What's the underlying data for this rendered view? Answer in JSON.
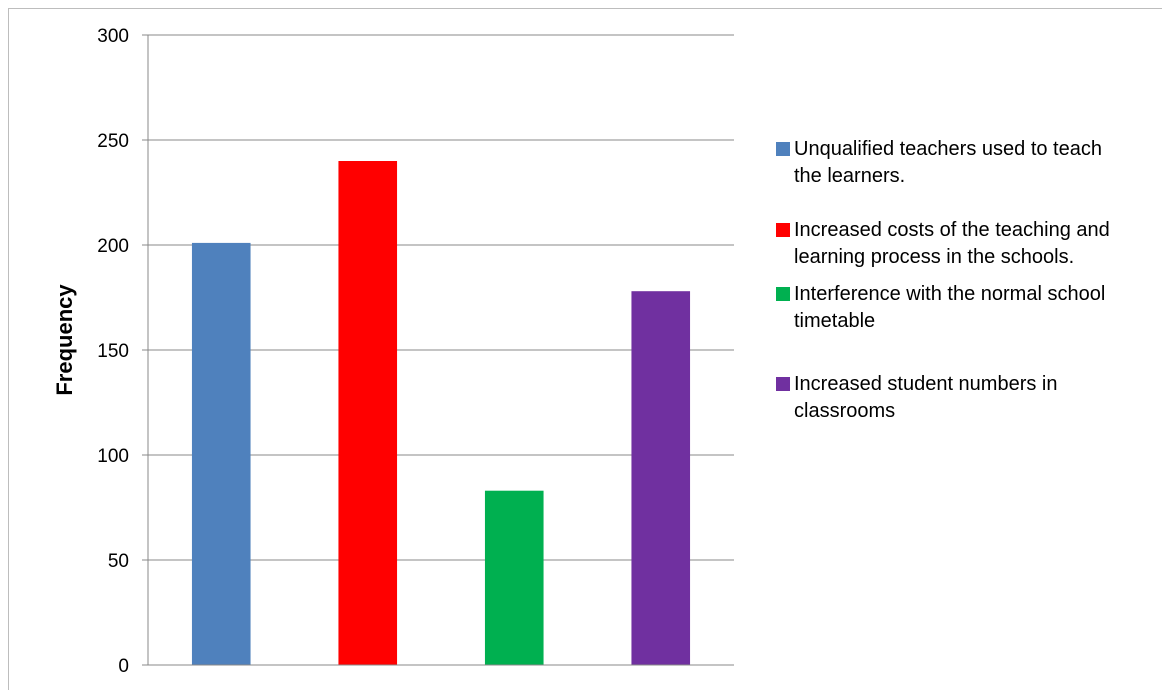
{
  "chart_data": {
    "type": "bar",
    "title": "",
    "xlabel": "",
    "ylabel": "Frequency",
    "ylim": [
      0,
      300
    ],
    "yticks": [
      0,
      50,
      100,
      150,
      200,
      250,
      300
    ],
    "grid": true,
    "legend_position": "right",
    "categories": [
      "Unqualified teachers used to teach the learners.",
      "Increased costs of the teaching and learning process in the schools.",
      "Interference with the normal school timetable",
      "Increased student numbers in classrooms"
    ],
    "values": [
      201,
      240,
      83,
      178
    ],
    "colors": [
      "#4f81bd",
      "#ff0000",
      "#00b050",
      "#7030a0"
    ]
  }
}
